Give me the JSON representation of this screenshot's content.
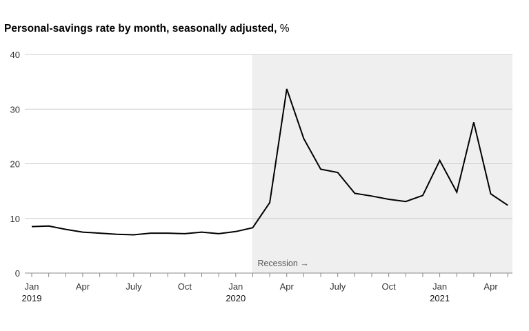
{
  "title": {
    "main": "Personal-savings rate by month, seasonally adjusted,",
    "unit": "%"
  },
  "colors": {
    "line": "#000000",
    "recession_shade": "#efefef",
    "grid": "#cccccc"
  },
  "chart_data": {
    "type": "line",
    "title": "Personal-savings rate by month, seasonally adjusted, %",
    "xlabel": "",
    "ylabel": "",
    "ylim": [
      0,
      40
    ],
    "yticks": [
      0,
      10,
      20,
      30,
      40
    ],
    "grid": "horizontal",
    "x": [
      "2019-01",
      "2019-02",
      "2019-03",
      "2019-04",
      "2019-05",
      "2019-06",
      "2019-07",
      "2019-08",
      "2019-09",
      "2019-10",
      "2019-11",
      "2019-12",
      "2020-01",
      "2020-02",
      "2020-03",
      "2020-04",
      "2020-05",
      "2020-06",
      "2020-07",
      "2020-08",
      "2020-09",
      "2020-10",
      "2020-11",
      "2020-12",
      "2021-01",
      "2021-02",
      "2021-03",
      "2021-04",
      "2021-05"
    ],
    "series": [
      {
        "values": [
          8.5,
          8.6,
          8.0,
          7.5,
          7.3,
          7.1,
          7.0,
          7.3,
          7.3,
          7.2,
          7.5,
          7.2,
          7.6,
          8.3,
          12.9,
          33.7,
          24.6,
          19.0,
          18.4,
          14.6,
          14.1,
          13.5,
          13.1,
          14.2,
          20.6,
          14.8,
          27.6,
          14.5,
          12.4
        ]
      }
    ],
    "xticks": [
      {
        "index": 0,
        "label": "Jan",
        "year": "2019"
      },
      {
        "index": 3,
        "label": "Apr",
        "year": ""
      },
      {
        "index": 6,
        "label": "July",
        "year": ""
      },
      {
        "index": 9,
        "label": "Oct",
        "year": ""
      },
      {
        "index": 12,
        "label": "Jan",
        "year": "2020"
      },
      {
        "index": 15,
        "label": "Apr",
        "year": ""
      },
      {
        "index": 18,
        "label": "July",
        "year": ""
      },
      {
        "index": 21,
        "label": "Oct",
        "year": ""
      },
      {
        "index": 24,
        "label": "Jan",
        "year": "2021"
      },
      {
        "index": 27,
        "label": "Apr",
        "year": ""
      }
    ],
    "recession": {
      "start_index": 13,
      "label": "Recession →"
    }
  }
}
